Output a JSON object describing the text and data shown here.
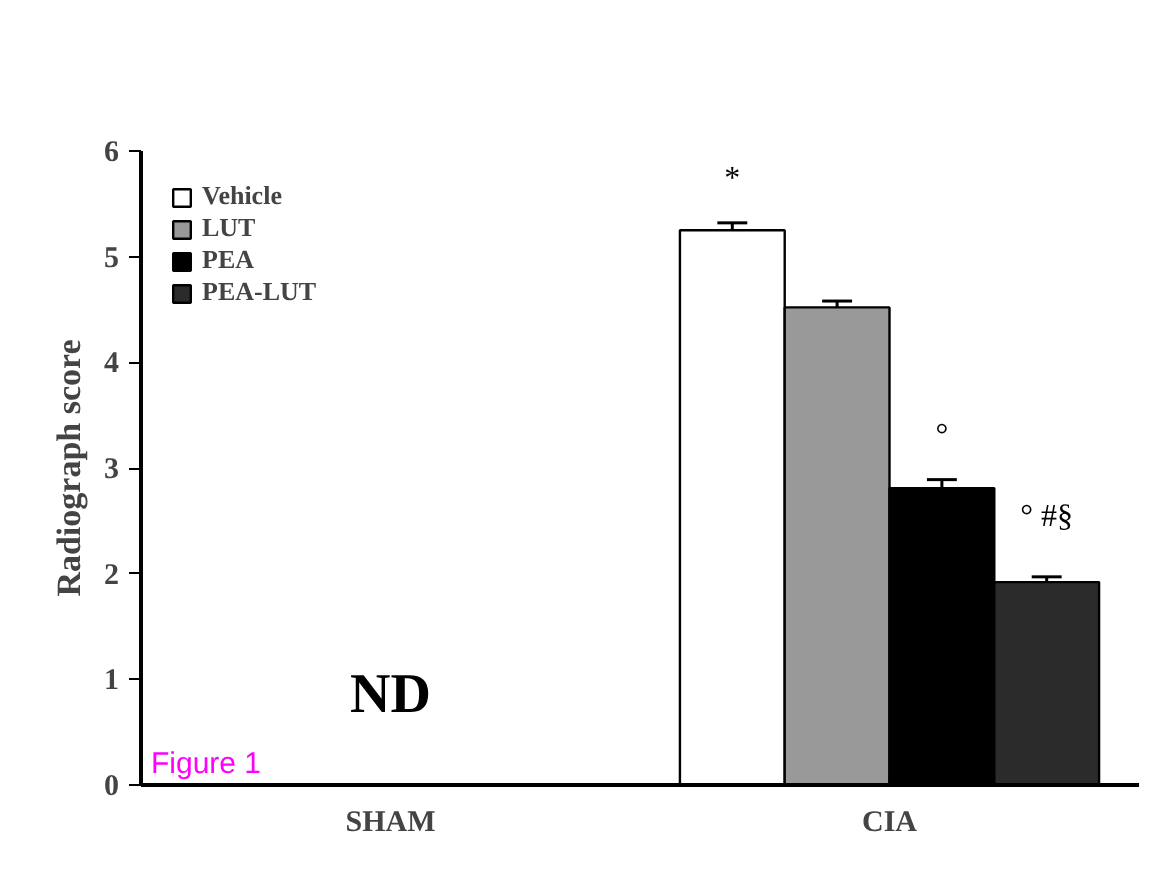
{
  "chart_data": {
    "type": "bar",
    "ylabel": "Radiograph score",
    "categories": [
      "SHAM",
      "CIA"
    ],
    "series": [
      {
        "name": "Vehicle",
        "color": "#ffffff",
        "values": [
          null,
          5.25
        ],
        "errors": [
          null,
          0.07
        ]
      },
      {
        "name": "LUT",
        "color": "#999999",
        "values": [
          null,
          4.52
        ],
        "errors": [
          null,
          0.06
        ]
      },
      {
        "name": "PEA",
        "color": "#000000",
        "values": [
          null,
          2.81
        ],
        "errors": [
          null,
          0.08
        ]
      },
      {
        "name": "PEA-LUT",
        "color": "#2b2b2b",
        "values": [
          null,
          1.92
        ],
        "errors": [
          null,
          0.05
        ]
      }
    ],
    "ylim": [
      0,
      6
    ],
    "yticks": [
      0,
      1,
      2,
      3,
      4,
      5,
      6
    ],
    "grid": false,
    "legend": "top left",
    "annotations": [
      "*",
      "°",
      "° #§",
      "ND",
      "Figure 1"
    ]
  }
}
